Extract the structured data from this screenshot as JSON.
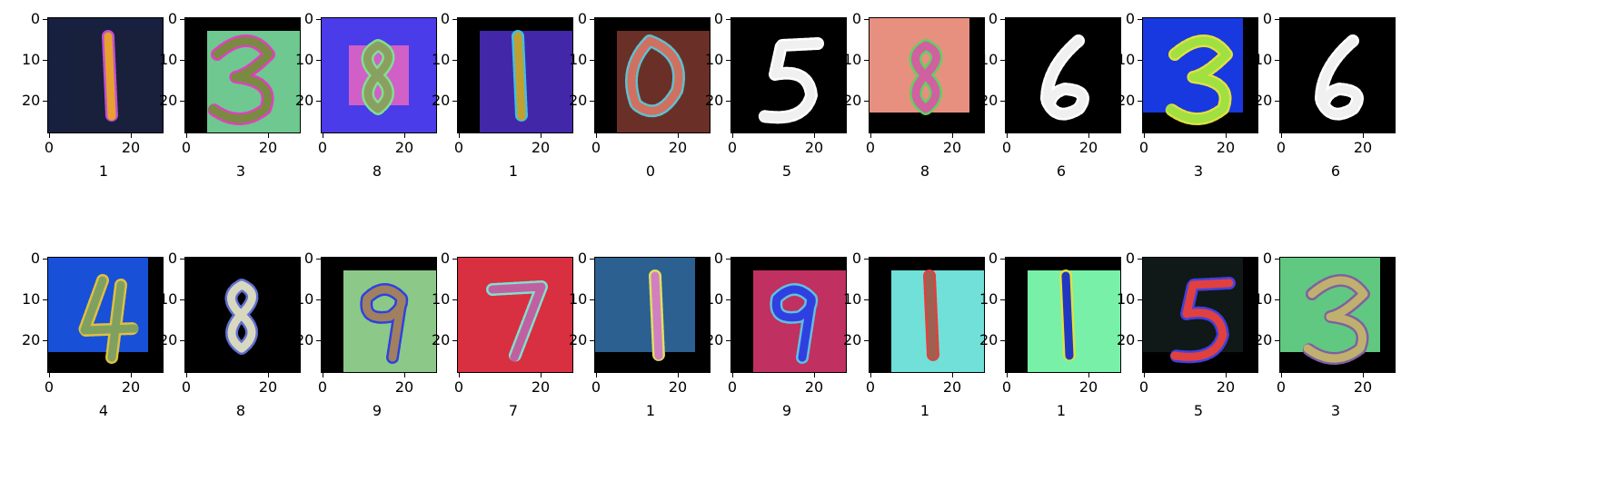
{
  "figure": {
    "y_tick_labels": [
      "0",
      "10",
      "20"
    ],
    "x_tick_labels": [
      "0",
      "20"
    ],
    "panels": [
      {
        "label": "1",
        "bg": "#182040",
        "box": "#18203c",
        "digit": "1",
        "stroke": "#e8a030",
        "edge": "#c050d0",
        "frame": "tr"
      },
      {
        "label": "3",
        "bg": "#000000",
        "box": "#6ec890",
        "digit": "3",
        "stroke": "#7a8a40",
        "edge": "#e040c0",
        "frame": "tr"
      },
      {
        "label": "8",
        "bg": "#4a3ce8",
        "box": "#d060c8",
        "digit": "8",
        "stroke": "#8aa060",
        "edge": "#80e090",
        "frame": "center"
      },
      {
        "label": "1",
        "bg": "#000000",
        "box": "#4228a8",
        "digit": "1",
        "stroke": "#c0a030",
        "edge": "#40c0e0",
        "frame": "tr"
      },
      {
        "label": "0",
        "bg": "#000000",
        "box": "#6a3028",
        "digit": "0",
        "stroke": "#d07060",
        "edge": "#60c0d0",
        "frame": "tr"
      },
      {
        "label": "5",
        "bg": "#000000",
        "box": "#000000",
        "digit": "5",
        "stroke": "#f0f0f0",
        "edge": "#ffffff",
        "frame": "none"
      },
      {
        "label": "8",
        "bg": "#000000",
        "box": "#e89080",
        "digit": "8",
        "stroke": "#d060a0",
        "edge": "#60d060",
        "frame": "tl"
      },
      {
        "label": "6",
        "bg": "#000000",
        "box": "#000000",
        "digit": "6",
        "stroke": "#f0f0f0",
        "edge": "#ffffff",
        "frame": "none"
      },
      {
        "label": "3",
        "bg": "#000000",
        "box": "#1838e0",
        "digit": "3",
        "stroke": "#a0e040",
        "edge": "#e0e040",
        "frame": "tl"
      },
      {
        "label": "6",
        "bg": "#000000",
        "box": "#000000",
        "digit": "6",
        "stroke": "#f0f0f0",
        "edge": "#ffffff",
        "frame": "none"
      },
      {
        "label": "4",
        "bg": "#000000",
        "box": "#1850d8",
        "digit": "4",
        "stroke": "#80a060",
        "edge": "#e0c040",
        "frame": "tl"
      },
      {
        "label": "8",
        "bg": "#000000",
        "box": "#000000",
        "digit": "8",
        "stroke": "#d8d8c0",
        "edge": "#6070d0",
        "frame": "none"
      },
      {
        "label": "9",
        "bg": "#000000",
        "box": "#8cc888",
        "digit": "9",
        "stroke": "#a08060",
        "edge": "#3040e0",
        "frame": "tr"
      },
      {
        "label": "7",
        "bg": "#d83040",
        "box": "#d83040",
        "digit": "7",
        "stroke": "#c060a0",
        "edge": "#80e0d0",
        "frame": "none"
      },
      {
        "label": "1",
        "bg": "#000000",
        "box": "#2c6090",
        "digit": "1",
        "stroke": "#d080c0",
        "edge": "#e0e060",
        "frame": "tl"
      },
      {
        "label": "9",
        "bg": "#000000",
        "box": "#c03060",
        "digit": "9",
        "stroke": "#3040e0",
        "edge": "#60c0e0",
        "frame": "tr"
      },
      {
        "label": "1",
        "bg": "#000000",
        "box": "#70e0d8",
        "digit": "1",
        "stroke": "#a06050",
        "edge": "#e04040",
        "frame": "tr"
      },
      {
        "label": "1",
        "bg": "#000000",
        "box": "#78f0a8",
        "digit": "1",
        "stroke": "#2038c0",
        "edge": "#e0e040",
        "frame": "tr"
      },
      {
        "label": "5",
        "bg": "#000000",
        "box": "#101818",
        "digit": "5",
        "stroke": "#e04040",
        "edge": "#4040e0",
        "frame": "tl"
      },
      {
        "label": "3",
        "bg": "#000000",
        "box": "#60c880",
        "digit": "3",
        "stroke": "#c0b070",
        "edge": "#8060a0",
        "frame": "tl"
      }
    ]
  }
}
